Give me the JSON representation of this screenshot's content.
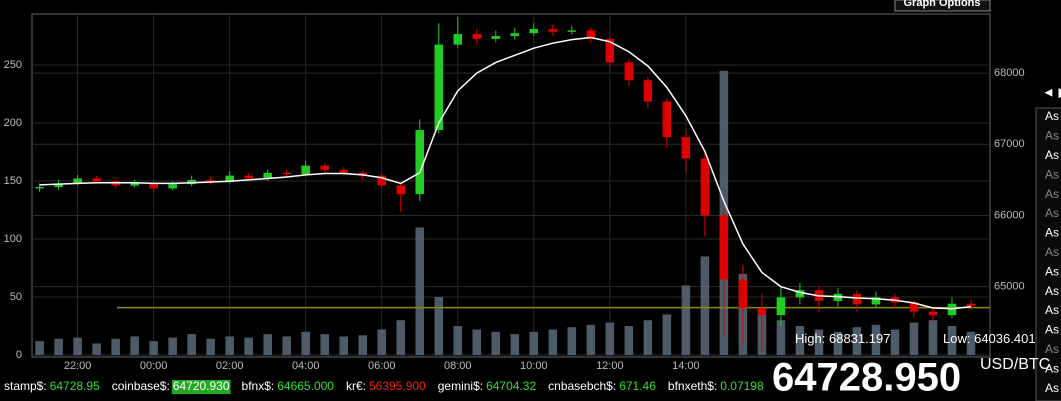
{
  "graph_options": "Graph Options",
  "nav": "◄ ▶",
  "side_list": [
    {
      "text": "As",
      "color": "#ffffff"
    },
    {
      "text": "As",
      "color": "#888888"
    },
    {
      "text": "As",
      "color": "#ffffff"
    },
    {
      "text": "As",
      "color": "#888888"
    },
    {
      "text": "As",
      "color": "#888888"
    },
    {
      "text": "As",
      "color": "#888888"
    },
    {
      "text": "As",
      "color": "#ffffff"
    },
    {
      "text": "As",
      "color": "#888888"
    },
    {
      "text": "As",
      "color": "#ffffff"
    },
    {
      "text": "As",
      "color": "#ffffff"
    },
    {
      "text": "As",
      "color": "#ffffff"
    },
    {
      "text": "As",
      "color": "#ffffff"
    },
    {
      "text": "As",
      "color": "#888888"
    },
    {
      "text": "As",
      "color": "#ffffff"
    },
    {
      "text": "As",
      "color": "#ffffff"
    }
  ],
  "high": {
    "label": "High:",
    "value": "68831.197"
  },
  "low": {
    "label": "Low:",
    "value": "64036.401"
  },
  "price": "64728.950",
  "pair": "USD/BTC",
  "ticker": [
    {
      "label": "stamp$:",
      "value": "64728.95",
      "color": "#33dd33",
      "background": "none"
    },
    {
      "label": "coinbase$:",
      "value": "64720.930",
      "color": "#ffffff",
      "background": "#22aa22"
    },
    {
      "label": "bfnx$:",
      "value": "64665.000",
      "color": "#33dd33",
      "background": "none"
    },
    {
      "label": "kr€:",
      "value": "56395.900",
      "color": "#ee2222",
      "background": "none"
    },
    {
      "label": "gemini$:",
      "value": "64704.32",
      "color": "#33dd33",
      "background": "none"
    },
    {
      "label": "cnbasebch$:",
      "value": "671.46",
      "color": "#33dd33",
      "background": "none"
    },
    {
      "label": "bfnxeth$:",
      "value": "0.07198",
      "color": "#33dd33",
      "background": "none"
    }
  ],
  "chart_data": {
    "type": "candlestick",
    "x": [
      -3,
      -2.5,
      -2,
      -1.5,
      -1,
      -0.5,
      0,
      0.5,
      1,
      1.5,
      2,
      2.5,
      3,
      3.5,
      4,
      4.5,
      5,
      5.5,
      6,
      6.5,
      7,
      7.5,
      8,
      8.5,
      9,
      9.5,
      10,
      10.5,
      11,
      11.5,
      12,
      12.5,
      13,
      13.5,
      14,
      14.5,
      15,
      15.5,
      16,
      16.5,
      17,
      17.5,
      18,
      18.5,
      19,
      19.5,
      20,
      20.5,
      21,
      21.5
    ],
    "open": [
      66380,
      66400,
      66450,
      66520,
      66480,
      66420,
      66460,
      66380,
      66440,
      66500,
      66470,
      66560,
      66520,
      66600,
      66580,
      66700,
      66640,
      66600,
      66560,
      66420,
      66300,
      67200,
      68400,
      68550,
      68480,
      68520,
      68560,
      68620,
      68580,
      68600,
      68480,
      68150,
      67900,
      67600,
      67100,
      66800,
      66000,
      65100,
      64700,
      64600,
      64850,
      64950,
      64800,
      64900,
      64750,
      64850,
      64780,
      64650,
      64600,
      64760
    ],
    "high": [
      66450,
      66500,
      66570,
      66560,
      66510,
      66500,
      66490,
      66480,
      66560,
      66540,
      66620,
      66600,
      66650,
      66640,
      66770,
      66730,
      66680,
      66630,
      66590,
      66450,
      67350,
      68700,
      68790,
      68620,
      68600,
      68640,
      68700,
      68680,
      68660,
      68640,
      68520,
      68200,
      67950,
      67650,
      67200,
      66900,
      66100,
      65300,
      64900,
      65000,
      65050,
      65000,
      64980,
      64950,
      64930,
      64900,
      64820,
      64700,
      64850,
      64820
    ],
    "low": [
      66330,
      66360,
      66420,
      66440,
      66380,
      66390,
      66330,
      66350,
      66410,
      66430,
      66450,
      66480,
      66490,
      66540,
      66560,
      66600,
      66560,
      66500,
      66380,
      66050,
      66200,
      67150,
      68350,
      68400,
      68430,
      68470,
      68520,
      68520,
      68540,
      68420,
      68080,
      67820,
      67500,
      66950,
      66600,
      65700,
      64300,
      64200,
      64100,
      64450,
      64750,
      64650,
      64720,
      64650,
      64700,
      64700,
      64560,
      64500,
      64560,
      64680
    ],
    "close": [
      66400,
      66450,
      66520,
      66480,
      66420,
      66460,
      66380,
      66440,
      66500,
      66470,
      66560,
      66520,
      66600,
      66580,
      66700,
      66640,
      66600,
      66560,
      66420,
      66300,
      67200,
      68400,
      68550,
      68480,
      68520,
      68560,
      68620,
      68580,
      68600,
      68480,
      68150,
      67900,
      67600,
      67100,
      66800,
      66000,
      65100,
      64700,
      64600,
      64850,
      64950,
      64800,
      64900,
      64750,
      64850,
      64780,
      64650,
      64600,
      64760,
      64728.95
    ],
    "up_color": "#22cc22",
    "down_color": "#dd0000",
    "volume": {
      "color": "#5a6a7a",
      "values": [
        12,
        14,
        15,
        10,
        14,
        16,
        12,
        15,
        18,
        14,
        16,
        15,
        18,
        16,
        20,
        18,
        16,
        17,
        22,
        30,
        110,
        50,
        25,
        22,
        20,
        18,
        20,
        22,
        24,
        26,
        28,
        25,
        30,
        35,
        60,
        85,
        245,
        70,
        40,
        30,
        25,
        22,
        20,
        24,
        26,
        22,
        28,
        30,
        25,
        20
      ]
    },
    "moving_average": {
      "color": "#ffffff",
      "values": [
        66430,
        66440,
        66450,
        66460,
        66460,
        66460,
        66450,
        66450,
        66460,
        66470,
        66480,
        66500,
        66520,
        66540,
        66570,
        66590,
        66590,
        66570,
        66530,
        66450,
        66600,
        67300,
        67750,
        68000,
        68150,
        68250,
        68350,
        68420,
        68470,
        68500,
        68440,
        68300,
        68100,
        67800,
        67400,
        66900,
        66200,
        65600,
        65200,
        65000,
        64920,
        64870,
        64860,
        64840,
        64830,
        64810,
        64770,
        64700,
        64690,
        64720
      ]
    },
    "reference_line": {
      "value": 64705,
      "color": "#8a8a10"
    },
    "xlim": [
      -3.2,
      22
    ],
    "xticks": [
      {
        "value": -2,
        "label": "22:00"
      },
      {
        "value": 0,
        "label": "00:00"
      },
      {
        "value": 2,
        "label": "02:00"
      },
      {
        "value": 4,
        "label": "04:00"
      },
      {
        "value": 6,
        "label": "06:00"
      },
      {
        "value": 8,
        "label": "08:00"
      },
      {
        "value": 10,
        "label": "10:00"
      },
      {
        "value": 12,
        "label": "12:00"
      },
      {
        "value": 14,
        "label": "14:00"
      }
    ],
    "ylim": [
      0,
      294
    ],
    "yticks": [
      0,
      50,
      100,
      150,
      200,
      250
    ],
    "y2lim": [
      64040,
      68830
    ],
    "y2ticks": [
      65000,
      66000,
      67000,
      68000
    ],
    "grid": true
  }
}
